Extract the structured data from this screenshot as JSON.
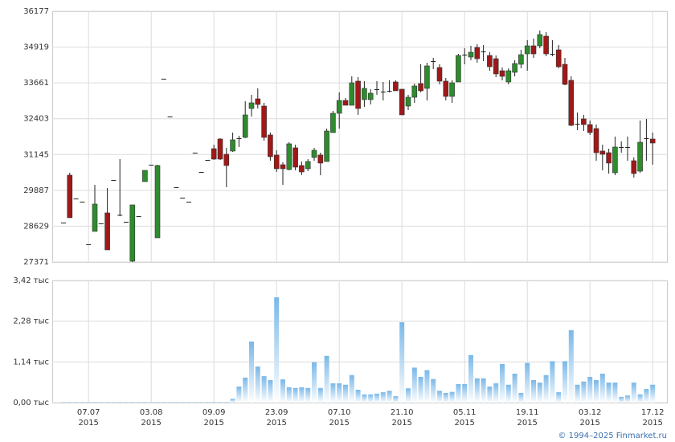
{
  "chart_data": [
    {
      "type": "candlestick",
      "up_color": "#2e8b2e",
      "down_color": "#a01818",
      "grid": true,
      "ylim": [
        27371,
        36177
      ],
      "yticks": [
        27371,
        28629,
        29887,
        31145,
        32403,
        33661,
        34919,
        36177
      ],
      "open": [
        28755,
        30420,
        29600,
        29490,
        27993,
        28445,
        28727,
        29094,
        30251,
        29026,
        28783,
        27400,
        28981,
        30194,
        30787,
        28219,
        33807,
        32480,
        29997,
        29630,
        29489,
        31210,
        30533,
        30956,
        31351,
        31690,
        31154,
        31267,
        31718,
        31747,
        32762,
        33101,
        32847,
        31832,
        31126,
        30787,
        30618,
        31380,
        30759,
        30646,
        31041,
        31126,
        30900,
        31916,
        32593,
        33045,
        32875,
        33722,
        33073,
        33073,
        33440,
        33355,
        33383,
        33694,
        33440,
        32847,
        33157,
        33637,
        33468,
        34427,
        34201,
        33722,
        33186,
        33694,
        34652,
        34568,
        34906,
        34765,
        34624,
        34511,
        34088,
        33694,
        34032,
        34314,
        34681,
        34963,
        34963,
        35302,
        34681,
        34822,
        34314,
        33750,
        32226,
        32396,
        32198,
        32057,
        31267,
        31210,
        30505,
        31408,
        31408,
        30928,
        30561,
        31718,
        31690
      ],
      "high": [
        28755,
        30505,
        29600,
        29490,
        27993,
        30081,
        28727,
        29969,
        30251,
        30985,
        28783,
        29376,
        28981,
        30589,
        30787,
        30787,
        33807,
        32480,
        29997,
        29630,
        29489,
        31210,
        30533,
        30956,
        31492,
        31718,
        31380,
        31916,
        31803,
        33017,
        33242,
        33468,
        32960,
        31916,
        31295,
        30872,
        31577,
        31492,
        30900,
        30985,
        31380,
        31210,
        32057,
        32677,
        33327,
        33129,
        33891,
        33863,
        33722,
        33440,
        33722,
        33694,
        33750,
        33750,
        33440,
        33242,
        33637,
        34314,
        34370,
        34540,
        34314,
        33835,
        33750,
        34681,
        34878,
        34963,
        35020,
        34991,
        34737,
        34624,
        34201,
        34173,
        34455,
        34821,
        35161,
        35217,
        35500,
        35443,
        35161,
        34991,
        34540,
        33891,
        32621,
        32537,
        32339,
        32198,
        31492,
        31351,
        31775,
        31605,
        31775,
        31041,
        32339,
        32396,
        31916
      ],
      "low": [
        28755,
        28925,
        29600,
        29490,
        27993,
        28445,
        28727,
        27796,
        30251,
        28981,
        28783,
        27371,
        28981,
        30194,
        30787,
        28219,
        33807,
        32480,
        29997,
        29630,
        29489,
        31210,
        30533,
        30956,
        30956,
        30956,
        29997,
        31239,
        31408,
        31719,
        32480,
        32762,
        31634,
        30928,
        30533,
        30081,
        30589,
        30590,
        30420,
        30561,
        30928,
        30420,
        30900,
        31916,
        32057,
        32875,
        32875,
        32537,
        32819,
        32904,
        33242,
        33045,
        33327,
        33383,
        32537,
        32706,
        32960,
        33327,
        33045,
        34145,
        33609,
        33045,
        32960,
        33694,
        34314,
        34455,
        34370,
        34427,
        34088,
        33863,
        33750,
        33609,
        33891,
        34173,
        34088,
        34540,
        34878,
        34596,
        34596,
        34173,
        33580,
        32142,
        32000,
        31972,
        31831,
        30928,
        30589,
        30477,
        30420,
        31210,
        30928,
        30336,
        30505,
        30928,
        30787
      ],
      "close": [
        28755,
        28925,
        29600,
        29490,
        27993,
        29404,
        28727,
        27796,
        30251,
        28998,
        28783,
        29376,
        28981,
        30589,
        30787,
        30759,
        33807,
        32480,
        29997,
        29630,
        29489,
        31210,
        30533,
        30956,
        30985,
        30985,
        30759,
        31662,
        31690,
        32537,
        32960,
        32904,
        31747,
        31069,
        30646,
        30646,
        31521,
        30702,
        30533,
        30900,
        31295,
        30844,
        31972,
        32593,
        33045,
        32875,
        33665,
        32762,
        33468,
        33299,
        33412,
        33327,
        33355,
        33383,
        32537,
        33157,
        33552,
        33383,
        34258,
        34427,
        33722,
        33186,
        33665,
        34624,
        34624,
        34737,
        34511,
        34737,
        34229,
        33976,
        33891,
        34088,
        34342,
        34652,
        34963,
        34681,
        35359,
        34681,
        34652,
        34229,
        33609,
        32170,
        32198,
        32198,
        31916,
        31210,
        31154,
        30844,
        31408,
        31380,
        31380,
        30477,
        31577,
        31690,
        31549
      ]
    },
    {
      "type": "bar",
      "color": "#7ab8e8",
      "grid": true,
      "ylim": [
        0,
        3.42
      ],
      "yticks": [
        {
          "value": 0,
          "label": "0,00 тыс"
        },
        {
          "value": 1.14,
          "label": "1,14 тыс"
        },
        {
          "value": 2.28,
          "label": "2,28 тыс"
        },
        {
          "value": 3.42,
          "label": "3,42 тыс"
        }
      ],
      "categories": [
        null,
        null,
        null,
        null,
        {
          "date": "07.07",
          "year": "2015"
        },
        null,
        null,
        null,
        null,
        null,
        null,
        null,
        null,
        null,
        {
          "date": "03.08",
          "year": "2015"
        },
        null,
        null,
        null,
        null,
        null,
        null,
        null,
        null,
        null,
        {
          "date": "09.09",
          "year": "2015"
        },
        null,
        null,
        null,
        null,
        null,
        null,
        null,
        null,
        null,
        {
          "date": "23.09",
          "year": "2015"
        },
        null,
        null,
        null,
        null,
        null,
        null,
        null,
        null,
        null,
        {
          "date": "07.10",
          "year": "2015"
        },
        null,
        null,
        null,
        null,
        null,
        null,
        null,
        null,
        null,
        {
          "date": "21.10",
          "year": "2015"
        },
        null,
        null,
        null,
        null,
        null,
        null,
        null,
        null,
        null,
        {
          "date": "05.11",
          "year": "2015"
        },
        null,
        null,
        null,
        null,
        null,
        null,
        null,
        null,
        null,
        {
          "date": "19.11",
          "year": "2015"
        },
        null,
        null,
        null,
        null,
        null,
        null,
        null,
        null,
        null,
        {
          "date": "03.12",
          "year": "2015"
        },
        null,
        null,
        null,
        null,
        null,
        null,
        null,
        null,
        null,
        {
          "date": "17.12",
          "year": "2015"
        }
      ],
      "values": [
        0.02,
        0.02,
        0.02,
        0.02,
        0.02,
        0.02,
        0.02,
        0.02,
        0.02,
        0.02,
        0.02,
        0.02,
        0.02,
        0.02,
        0.02,
        0.02,
        0.02,
        0.02,
        0.02,
        0.02,
        0.02,
        0.02,
        0.02,
        0.02,
        0.02,
        0.02,
        0.02,
        0.11,
        0.45,
        0.7,
        1.71,
        1.01,
        0.74,
        0.63,
        2.95,
        0.65,
        0.43,
        0.41,
        0.43,
        0.41,
        1.13,
        0.41,
        1.31,
        0.54,
        0.54,
        0.5,
        0.77,
        0.36,
        0.23,
        0.23,
        0.25,
        0.29,
        0.33,
        0.18,
        2.25,
        0.4,
        0.98,
        0.72,
        0.91,
        0.66,
        0.33,
        0.27,
        0.3,
        0.52,
        0.52,
        1.33,
        0.68,
        0.68,
        0.45,
        0.54,
        1.08,
        0.5,
        0.81,
        0.27,
        1.11,
        0.63,
        0.56,
        0.77,
        1.16,
        0.29,
        1.16,
        2.03,
        0.5,
        0.59,
        0.72,
        0.63,
        0.81,
        0.56,
        0.56,
        0.16,
        0.2,
        0.56,
        0.23,
        0.38,
        0.5
      ],
      "credit": "© 1994–2025 Finmarket.ru"
    }
  ]
}
